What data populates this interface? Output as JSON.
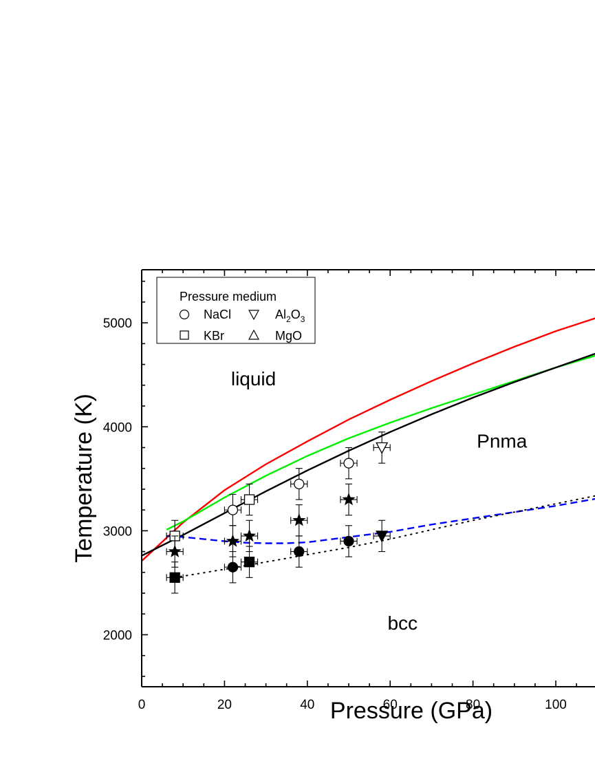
{
  "chart_data": {
    "type": "scatter",
    "xlabel": "Pressure (GPa)",
    "ylabel": "Temperature (K)",
    "xlim": [
      0,
      110
    ],
    "ylim": [
      1500,
      5500
    ],
    "x_ticks": [
      0,
      20,
      40,
      60,
      80,
      100
    ],
    "y_ticks": [
      2000,
      3000,
      4000,
      5000
    ],
    "grid": false,
    "legend": {
      "title": "Pressure medium",
      "placement": "top-left",
      "entries": [
        {
          "label": "NaCl",
          "marker": "circle-open"
        },
        {
          "label": "Al",
          "sub": "2",
          "label2": "O",
          "sub2": "3",
          "marker": "triangle-down-open"
        },
        {
          "label": "KBr",
          "marker": "square-open"
        },
        {
          "label": "MgO",
          "marker": "triangle-up-open"
        }
      ]
    },
    "annotations": [
      {
        "text": "liquid",
        "x": 27,
        "y": 4400
      },
      {
        "text": "Pnma",
        "x": 87,
        "y": 3800
      },
      {
        "text": "bcc",
        "x": 63,
        "y": 2050
      }
    ],
    "curves": [
      {
        "color": "#ff0000",
        "style": "solid",
        "x": [
          0,
          10,
          20,
          30,
          40,
          50,
          60,
          70,
          80,
          90,
          100,
          110
        ],
        "y": [
          2710,
          3080,
          3390,
          3640,
          3860,
          4070,
          4260,
          4440,
          4610,
          4770,
          4920,
          5050
        ]
      },
      {
        "color": "#00ee00",
        "style": "solid",
        "x": [
          6,
          10,
          20,
          30,
          40,
          50,
          60,
          70,
          80,
          90,
          100,
          110
        ],
        "y": [
          3010,
          3090,
          3320,
          3530,
          3720,
          3890,
          4040,
          4180,
          4310,
          4440,
          4570,
          4690
        ]
      },
      {
        "color": "#000000",
        "style": "solid",
        "x": [
          0,
          10,
          20,
          30,
          40,
          50,
          60,
          70,
          80,
          90,
          100,
          110
        ],
        "y": [
          2760,
          2960,
          3170,
          3380,
          3580,
          3770,
          3950,
          4120,
          4280,
          4430,
          4570,
          4710
        ]
      },
      {
        "color": "#0000ff",
        "style": "dashed",
        "x": [
          6,
          10,
          15,
          20,
          25,
          30,
          35,
          40,
          50,
          60,
          70,
          80,
          90,
          100,
          110
        ],
        "y": [
          2950,
          2940,
          2920,
          2900,
          2885,
          2880,
          2880,
          2890,
          2940,
          2990,
          3060,
          3120,
          3180,
          3240,
          3310
        ]
      },
      {
        "color": "#000000",
        "style": "dotted",
        "x": [
          8,
          20,
          30,
          40,
          50,
          60,
          70,
          80,
          90,
          100,
          110
        ],
        "y": [
          2550,
          2630,
          2700,
          2770,
          2840,
          2920,
          3010,
          3100,
          3180,
          3260,
          3340
        ]
      }
    ],
    "series": [
      {
        "marker": "circle-open",
        "points": [
          {
            "x": 22,
            "y": 3200
          },
          {
            "x": 38,
            "y": 3450
          },
          {
            "x": 50,
            "y": 3650
          }
        ]
      },
      {
        "marker": "square-open",
        "points": [
          {
            "x": 8,
            "y": 2950
          },
          {
            "x": 26,
            "y": 3300
          }
        ]
      },
      {
        "marker": "triangle-down-open",
        "points": [
          {
            "x": 58,
            "y": 3800
          }
        ]
      },
      {
        "marker": "star-filled",
        "points": [
          {
            "x": 8,
            "y": 2800
          },
          {
            "x": 22,
            "y": 2900
          },
          {
            "x": 26,
            "y": 2950
          },
          {
            "x": 38,
            "y": 3100
          },
          {
            "x": 50,
            "y": 3300
          }
        ]
      },
      {
        "marker": "circle-filled",
        "points": [
          {
            "x": 22,
            "y": 2650
          },
          {
            "x": 38,
            "y": 2800
          },
          {
            "x": 50,
            "y": 2900
          }
        ]
      },
      {
        "marker": "square-filled",
        "points": [
          {
            "x": 8,
            "y": 2550
          },
          {
            "x": 26,
            "y": 2700
          }
        ]
      },
      {
        "marker": "triangle-down-filled",
        "points": [
          {
            "x": 58,
            "y": 2950
          }
        ]
      }
    ],
    "error_bars": {
      "x": 2,
      "y": 150
    }
  }
}
